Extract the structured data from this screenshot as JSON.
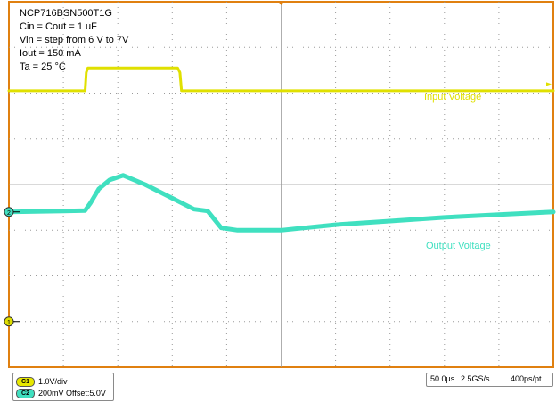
{
  "chart_data": {
    "type": "line",
    "title_lines": [
      "NCP716BSN500T1G",
      "Cin = Cout = 1 uF",
      "Vin = step from 6 V to 7V",
      "Iout = 150 mA",
      "Ta = 25 °C"
    ],
    "x_divisions": 10,
    "y_divisions": 8,
    "grid": true,
    "series": [
      {
        "name": "Input Voltage",
        "channel": "C1",
        "color": "#e0e000",
        "x_div": [
          0,
          1.4,
          1.42,
          1.45,
          3.1,
          3.14,
          3.17,
          10
        ],
        "y_div": [
          6.05,
          6.05,
          6.45,
          6.55,
          6.55,
          6.45,
          6.05,
          6.05
        ]
      },
      {
        "name": "Output Voltage",
        "channel": "C2",
        "color": "#40e0c0",
        "x_div": [
          0,
          0.5,
          1.0,
          1.4,
          1.5,
          1.65,
          1.85,
          2.1,
          2.5,
          3.0,
          3.4,
          3.65,
          3.9,
          4.2,
          5.0,
          6.0,
          7.0,
          8.0,
          9.0,
          10
        ],
        "y_div": [
          3.4,
          3.41,
          3.42,
          3.43,
          3.6,
          3.9,
          4.1,
          4.2,
          4.0,
          3.7,
          3.46,
          3.42,
          3.05,
          3.0,
          3.0,
          3.12,
          3.2,
          3.28,
          3.34,
          3.4
        ]
      }
    ],
    "annotations": [
      {
        "text": "Input Voltage",
        "series": 0
      },
      {
        "text": "Output Voltage",
        "series": 1
      }
    ],
    "channel_markers": [
      {
        "label": "2",
        "color": "#40e0c0",
        "y_div": 3.4
      },
      {
        "label": "1",
        "color": "#e0e000",
        "y_div": 1.0
      }
    ]
  },
  "status": {
    "channels": [
      {
        "badge": "C1",
        "color": "#e8e800",
        "text": "1.0V/div"
      },
      {
        "badge": "C2",
        "color": "#40e0c0",
        "text": "200mV  Offset:5.0V"
      }
    ],
    "timebase": "50.0µs",
    "sample_rate": "2.5GS/s",
    "resolution": "400ps/pt"
  },
  "colors": {
    "frame": "#e08010",
    "grid": "#9a9a9a",
    "background": "#ffffff"
  }
}
